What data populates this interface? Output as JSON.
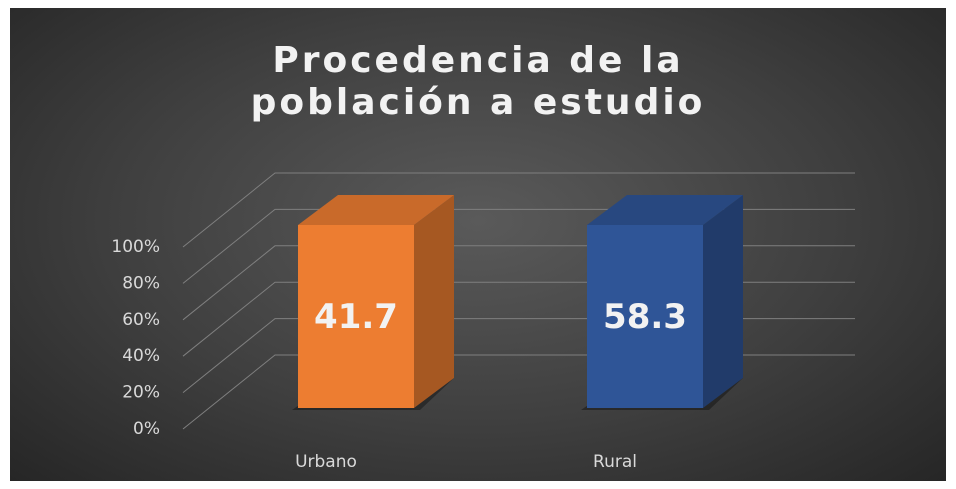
{
  "chart_data": {
    "type": "bar",
    "title": "Procedencia de la población a estudio",
    "categories": [
      "Urbano",
      "Rural"
    ],
    "values": [
      41.7,
      58.3
    ],
    "colors": [
      "#ed7d31",
      "#2f5597"
    ],
    "stacking": "percent",
    "ylim": [
      0,
      100
    ],
    "yticks": [
      {
        "value": 0,
        "label": "0%"
      },
      {
        "value": 20,
        "label": "20%"
      },
      {
        "value": 40,
        "label": "40%"
      },
      {
        "value": 60,
        "label": "60%"
      },
      {
        "value": 80,
        "label": "80%"
      },
      {
        "value": 100,
        "label": "100%"
      }
    ],
    "grid": true
  }
}
